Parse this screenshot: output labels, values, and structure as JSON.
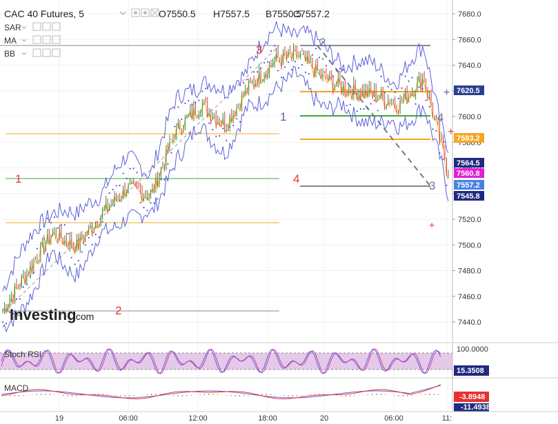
{
  "header": {
    "symbol": "CAC 40 Futures, 5",
    "open": "O7550.5",
    "high": "H7557.5",
    "low": "B7550.5",
    "close": "C7557.2"
  },
  "indicators": [
    "SAR",
    "MA",
    "BB"
  ],
  "logo": {
    "main": "Investing",
    "suffix": ".com"
  },
  "price_axis": {
    "ticks": [
      "7680.0",
      "7660.0",
      "7640.0",
      "7620.0",
      "7600.0",
      "7580.0",
      "7560.0",
      "7540.0",
      "7520.0",
      "7500.0",
      "7480.0",
      "7460.0",
      "7440.0"
    ]
  },
  "price_tags": [
    {
      "label": "7620.5",
      "bg": "#2a3d8f",
      "fg": "#ffffff"
    },
    {
      "label": "7583.2",
      "bg": "#f5a623",
      "fg": "#ffffff"
    },
    {
      "label": "7564.5",
      "bg": "#1f2a80",
      "fg": "#ffffff"
    },
    {
      "label": "7560.8",
      "bg": "#e21fd3",
      "fg": "#ffffff"
    },
    {
      "label": "7557.2",
      "bg": "#4a80e6",
      "fg": "#ffffff"
    },
    {
      "label": "7545.8",
      "bg": "#1f2a80",
      "fg": "#ffffff"
    }
  ],
  "time_axis": [
    "19",
    "06:00",
    "12:00",
    "18:00",
    "20",
    "06:00",
    "11:"
  ],
  "stoch_rsi": {
    "label": "Stoch RSI",
    "top_tick": "100.0000",
    "value": "15.3508"
  },
  "macd": {
    "label": "MACD",
    "value1": "-3.8948",
    "value2": "-11.4938"
  },
  "annotations": {
    "red": [
      "1",
      "2",
      "3",
      "4"
    ],
    "blue": [
      "1",
      "2",
      "3",
      "4"
    ]
  },
  "chart_data": {
    "type": "line",
    "title": "CAC 40 Futures, 5",
    "xlabel": "",
    "ylabel": "",
    "ylim": [
      7435,
      7690
    ],
    "x": [
      "19 00:00",
      "19 02:00",
      "19 04:00",
      "19 06:00",
      "19 08:00",
      "19 10:00",
      "19 12:00",
      "19 14:00",
      "19 16:00",
      "19 18:00",
      "19 20:00",
      "19 22:00",
      "20 00:00",
      "20 02:00",
      "20 04:00",
      "20 06:00",
      "20 08:00",
      "20 10:00",
      "20 11:00"
    ],
    "series": [
      {
        "values": [
          7450,
          7480,
          7510,
          7500,
          7525,
          7545,
          7540,
          7590,
          7610,
          7595,
          7625,
          7645,
          7648,
          7630,
          7622,
          7618,
          7610,
          7632,
          7557
        ]
      }
    ],
    "horizontal_levels": [
      7660,
      7655,
      7620,
      7600,
      7583,
      7565,
      7553,
      7517,
      7448
    ]
  }
}
